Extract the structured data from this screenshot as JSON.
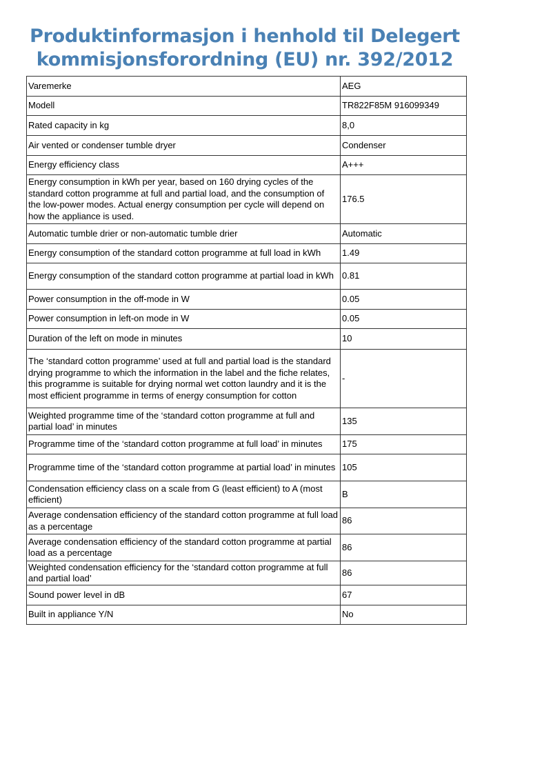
{
  "title": "Produktinformasjon i henhold til Delegert kommisjonsforordning (EU) nr. 392/2012",
  "title_color": "#4a81b4",
  "rows": [
    {
      "label": "Varemerke",
      "value": "AEG"
    },
    {
      "label": "Modell",
      "value": "TR822F85M 916099349"
    },
    {
      "label": "Rated capacity in kg",
      "value": "8,0"
    },
    {
      "label": "Air vented or condenser tumble dryer",
      "value": "Condenser"
    },
    {
      "label": "Energy efficiency class",
      "value": "A+++"
    },
    {
      "label": "Energy consumption in kWh per year, based on 160 drying cycles of the standard cotton programme at full and partial load, and the consumption of the low-power modes. Actual energy consumption per cycle will depend on how the appliance is used.",
      "value": "176.5"
    },
    {
      "label": "Automatic tumble drier or non-automatic tumble drier",
      "value": "Automatic"
    },
    {
      "label": "Energy consumption of the standard cotton programme at full load in kWh",
      "value": "1.49"
    },
    {
      "label": "Energy consumption of the standard cotton programme at partial load in kWh",
      "value": "0.81"
    },
    {
      "label": "Power consumption in the off-mode in W",
      "value": "0.05"
    },
    {
      "label": "Power consumption in left-on mode in W",
      "value": "0.05"
    },
    {
      "label": "Duration of the left on mode in minutes",
      "value": "10"
    },
    {
      "label": "The ‘standard cotton programme’ used at full and partial load is the standard drying programme to which the information in the label and the fiche relates, this programme is suitable for drying normal wet cotton laundry and it is the most efficient programme in terms of energy consumption for cotton",
      "value": "-"
    },
    {
      "label": "Weighted programme time of the ‘standard cotton programme at full and partial load’ in minutes",
      "value": "135"
    },
    {
      "label": "Programme time of the ‘standard cotton programme at full load’ in minutes",
      "value": "175"
    },
    {
      "label": "Programme time of the ‘standard cotton programme at partial load’ in minutes",
      "value": "105"
    },
    {
      "label": "Condensation efficiency class on a scale from G (least efficient) to A (most efficient)",
      "value": "B"
    },
    {
      "label": "Average condensation efficiency of the standard cotton programme at full load as a percentage",
      "value": "86"
    },
    {
      "label": "Average condensation efficiency of the standard cotton programme at partial load as a percentage",
      "value": "86"
    },
    {
      "label": "Weighted condensation efficiency for the ‘standard cotton programme at full and partial load’",
      "value": "86"
    },
    {
      "label": "Sound power level in dB",
      "value": "67"
    },
    {
      "label": "Built in appliance Y/N",
      "value": "No"
    }
  ]
}
